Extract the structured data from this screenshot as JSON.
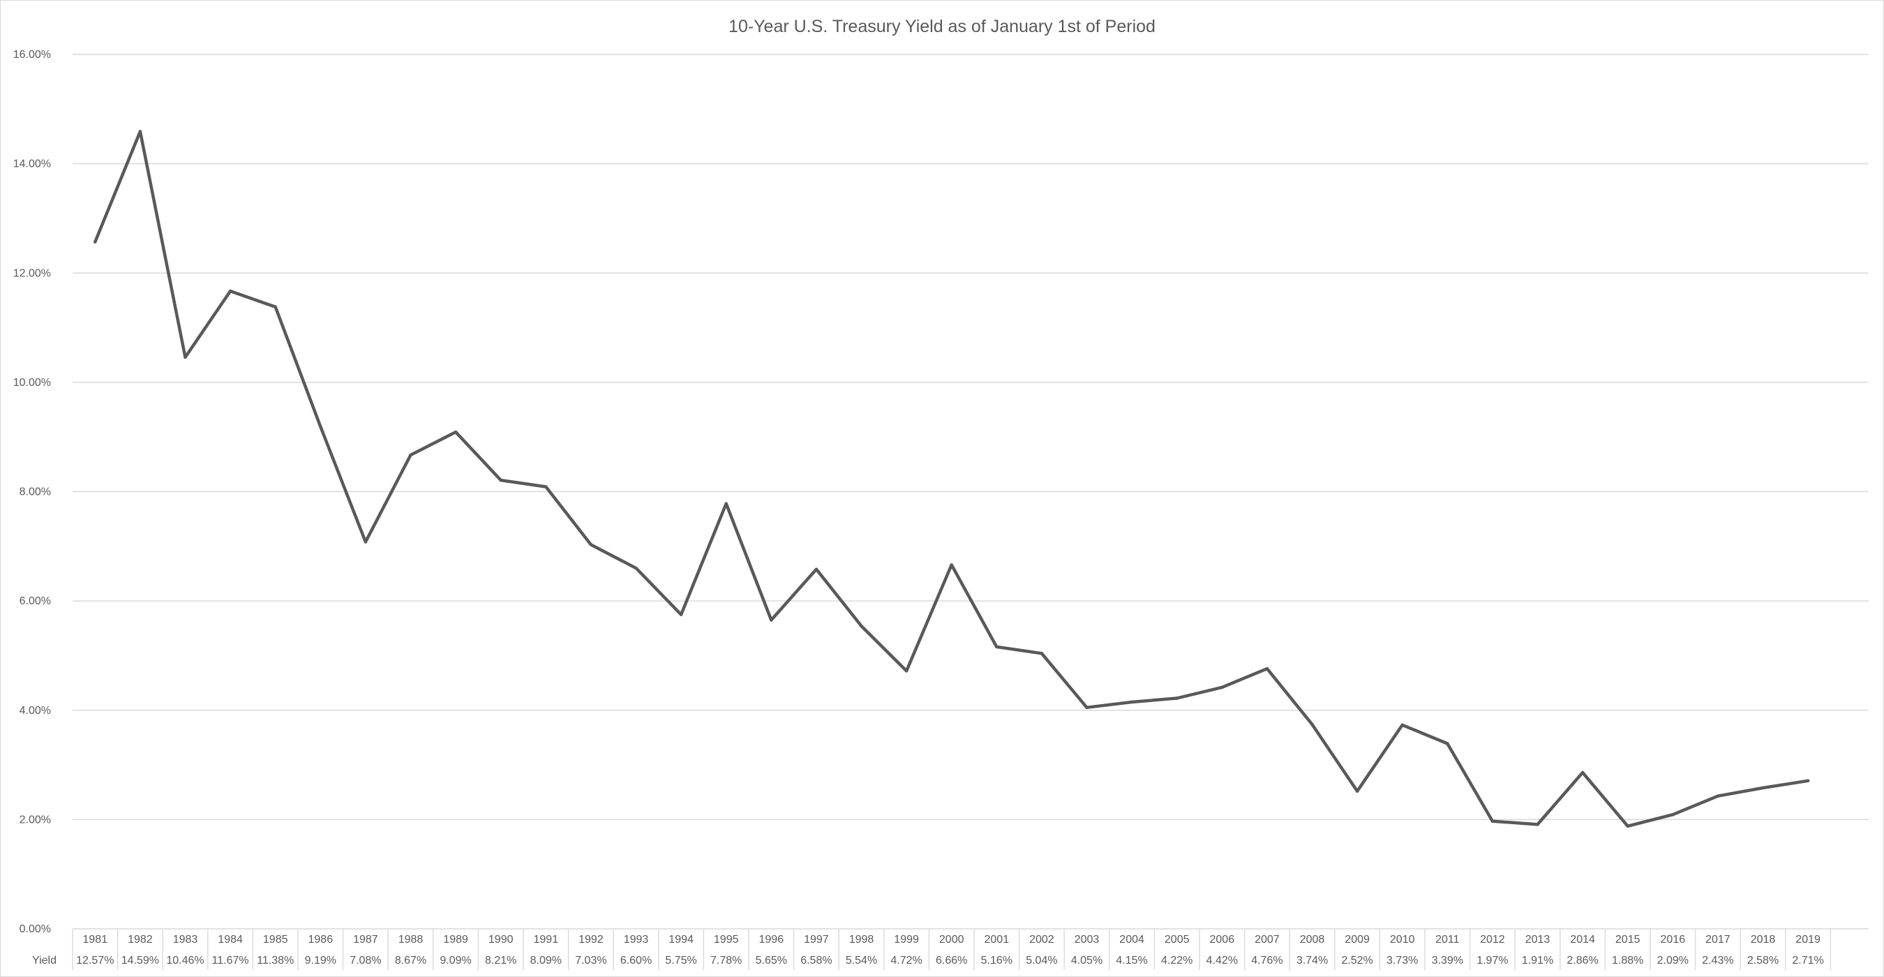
{
  "chart_data": {
    "type": "line",
    "title": "10-Year U.S. Treasury Yield as of January 1st of Period",
    "xlabel": "",
    "ylabel": "",
    "ylim": [
      0,
      16
    ],
    "y_tick_labels": [
      "0.00%",
      "2.00%",
      "4.00%",
      "6.00%",
      "8.00%",
      "10.00%",
      "12.00%",
      "14.00%",
      "16.00%"
    ],
    "y_tick_values": [
      0,
      2,
      4,
      6,
      8,
      10,
      12,
      14,
      16
    ],
    "grid": true,
    "legend": "data table below axis",
    "line_color": "#595959",
    "grid_color": "#d9d9d9",
    "categories": [
      "1981",
      "1982",
      "1983",
      "1984",
      "1985",
      "1986",
      "1987",
      "1988",
      "1989",
      "1990",
      "1991",
      "1992",
      "1993",
      "1994",
      "1995",
      "1996",
      "1997",
      "1998",
      "1999",
      "2000",
      "2001",
      "2002",
      "2003",
      "2004",
      "2005",
      "2006",
      "2007",
      "2008",
      "2009",
      "2010",
      "2011",
      "2012",
      "2013",
      "2014",
      "2015",
      "2016",
      "2017",
      "2018",
      "2019"
    ],
    "series": [
      {
        "name": "Yield",
        "values": [
          12.57,
          14.59,
          10.46,
          11.67,
          11.38,
          9.19,
          7.08,
          8.67,
          9.09,
          8.21,
          8.09,
          7.03,
          6.6,
          5.75,
          7.78,
          5.65,
          6.58,
          5.54,
          4.72,
          6.66,
          5.16,
          5.04,
          4.05,
          4.15,
          4.22,
          4.42,
          4.76,
          3.74,
          2.52,
          3.73,
          3.39,
          1.97,
          1.91,
          2.86,
          1.88,
          2.09,
          2.43,
          2.58,
          2.71
        ],
        "value_labels": [
          "12.57%",
          "14.59%",
          "10.46%",
          "11.67%",
          "11.38%",
          "9.19%",
          "7.08%",
          "8.67%",
          "9.09%",
          "8.21%",
          "8.09%",
          "7.03%",
          "6.60%",
          "5.75%",
          "7.78%",
          "5.65%",
          "6.58%",
          "5.54%",
          "4.72%",
          "6.66%",
          "5.16%",
          "5.04%",
          "4.05%",
          "4.15%",
          "4.22%",
          "4.42%",
          "4.76%",
          "3.74%",
          "2.52%",
          "3.73%",
          "3.39%",
          "1.97%",
          "1.91%",
          "2.86%",
          "1.88%",
          "2.09%",
          "2.43%",
          "2.58%",
          "2.71%"
        ]
      }
    ]
  }
}
